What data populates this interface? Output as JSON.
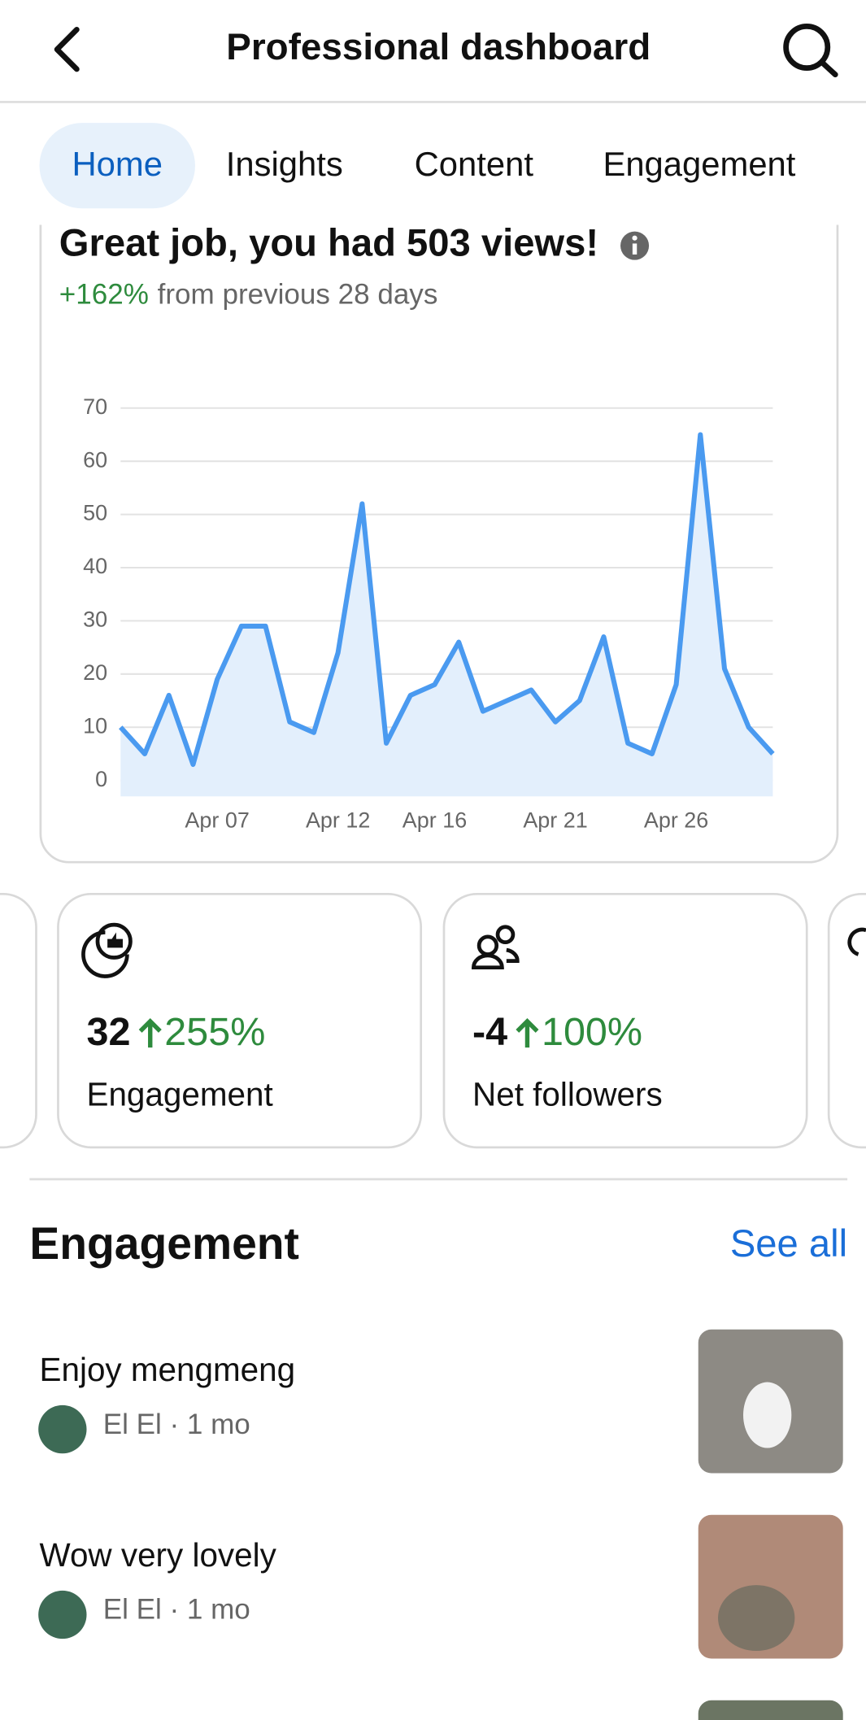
{
  "header": {
    "title": "Professional dashboard"
  },
  "tabs": [
    "Home",
    "Insights",
    "Content",
    "Engagement"
  ],
  "summary": {
    "headline": "Great job, you had 503 views!",
    "change": "+162%",
    "change_text": "from previous 28 days"
  },
  "chart_data": {
    "type": "line",
    "categories": [
      null,
      null,
      null,
      null,
      "Apr 07",
      null,
      null,
      null,
      null,
      "Apr 12",
      null,
      null,
      null,
      "Apr 16",
      null,
      null,
      null,
      null,
      "Apr 21",
      null,
      null,
      null,
      null,
      "Apr 26",
      null,
      null,
      null,
      null
    ],
    "values": [
      10,
      5,
      16,
      3,
      19,
      29,
      29,
      11,
      9,
      24,
      52,
      7,
      16,
      18,
      26,
      13,
      15,
      17,
      11,
      15,
      27,
      7,
      5,
      18,
      65,
      21,
      10,
      5
    ],
    "color": "#4a9af0",
    "ylim": [
      -3,
      70
    ],
    "yticks": [
      0,
      10,
      20,
      30,
      40,
      50,
      60,
      70
    ],
    "grid": true
  },
  "stats": [
    {
      "value": 32,
      "change": "255%",
      "label": "Engagement"
    },
    {
      "value": -4,
      "change": "100%",
      "label": "Net followers"
    }
  ],
  "engagement": {
    "title": "Engagement",
    "link": "See all",
    "items": [
      {
        "title": "Enjoy mengmeng",
        "meta": "El El · 1 mo"
      },
      {
        "title": "Wow very lovely",
        "meta": "El El · 1 mo"
      }
    ]
  }
}
